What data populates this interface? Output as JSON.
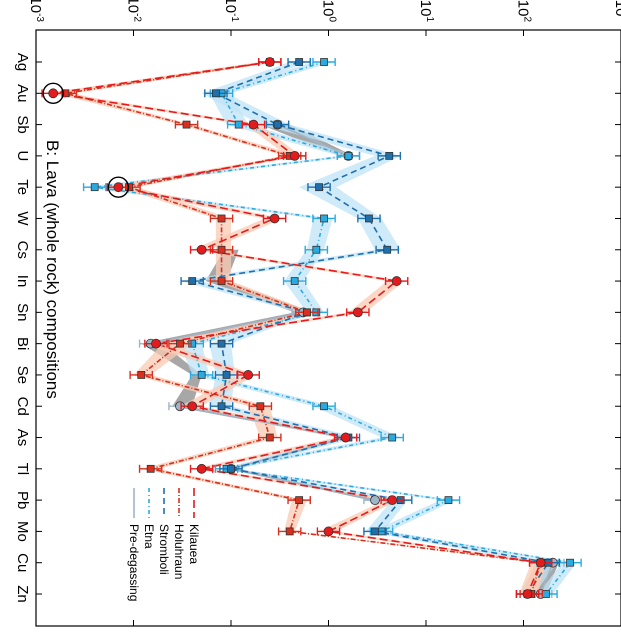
{
  "chart_data": {
    "type": "line",
    "title": "B: Lava (whole rock) compositions",
    "xlabel": "",
    "ylabel": "",
    "y_scale": "log",
    "ylim": [
      0.001,
      1000
    ],
    "y_ticks": [
      {
        "value": 0.001,
        "label": "10-3",
        "base": "10",
        "exp": "-3"
      },
      {
        "value": 0.01,
        "label": "10-2",
        "base": "10",
        "exp": "-2"
      },
      {
        "value": 0.1,
        "label": "10-1",
        "base": "10",
        "exp": "-1"
      },
      {
        "value": 1,
        "label": "100",
        "base": "10",
        "exp": "0"
      },
      {
        "value": 10,
        "label": "101",
        "base": "10",
        "exp": "1"
      },
      {
        "value": 100,
        "label": "102",
        "base": "10",
        "exp": "2"
      },
      {
        "value": 1000,
        "label": "103",
        "base": "10",
        "exp": "3"
      }
    ],
    "categories": [
      "Ag",
      "Au",
      "Sb",
      "U",
      "Te",
      "W",
      "Cs",
      "In",
      "Sn",
      "Bi",
      "Se",
      "Cd",
      "As",
      "Tl",
      "Pb",
      "Mo",
      "Cu",
      "Zn"
    ],
    "series": [
      {
        "name": "Pre-degassing",
        "color": "#9fb5c8",
        "dash": "",
        "marker": "circle",
        "values": [
          null,
          null,
          0.3,
          1.6,
          null,
          null,
          null,
          null,
          0.55,
          0.015,
          null,
          0.03,
          1.5,
          0.1,
          3.0,
          null,
          200,
          150
        ],
        "band": {
          "color": "#8a8a8a",
          "low": [
            null,
            null,
            0.2,
            1.3,
            null,
            null,
            0.085,
            0.055,
            0.45,
            0.012,
            0.04,
            0.025,
            1.3,
            0.09,
            2.6,
            null,
            170,
            130
          ],
          "high": [
            null,
            null,
            0.4,
            1.8,
            null,
            null,
            0.12,
            0.09,
            0.7,
            0.02,
            0.05,
            0.04,
            1.7,
            0.12,
            3.4,
            null,
            230,
            170
          ]
        }
      },
      {
        "name": "Etna",
        "color": "#29abe2",
        "dash": "4 3 1 3",
        "marker": "square",
        "values": [
          0.9,
          0.08,
          0.12,
          1.6,
          0.004,
          0.9,
          0.75,
          0.45,
          0.75,
          0.04,
          0.05,
          0.9,
          4.5,
          0.09,
          17,
          3.5,
          300,
          170
        ],
        "band": {
          "color": "#bfe3f5",
          "low": [
            0.7,
            0.06,
            0.09,
            1.3,
            0.003,
            0.7,
            0.6,
            0.35,
            0.6,
            0.03,
            0.04,
            0.7,
            3.5,
            0.07,
            14,
            2.8,
            250,
            140
          ],
          "high": [
            1.1,
            0.1,
            0.15,
            2.0,
            0.005,
            1.1,
            0.9,
            0.55,
            0.9,
            0.05,
            0.06,
            1.1,
            5.5,
            0.11,
            20,
            4.2,
            350,
            200
          ]
        }
      },
      {
        "name": "Stromboli",
        "color": "#1f6fad",
        "dash": "6 4",
        "marker": "square",
        "values": [
          0.5,
          0.07,
          0.3,
          4.2,
          0.8,
          2.6,
          4.0,
          0.04,
          0.6,
          0.08,
          0.09,
          0.08,
          1.6,
          0.1,
          5.5,
          3.0,
          180,
          110
        ],
        "band": {
          "color": "#bfe3f5",
          "low": [
            0.4,
            0.05,
            0.2,
            3.0,
            0.5,
            2.0,
            3.0,
            0.03,
            0.5,
            0.06,
            0.07,
            0.06,
            1.2,
            0.08,
            4.5,
            2.4,
            140,
            90
          ],
          "high": [
            0.6,
            0.09,
            0.4,
            5.5,
            1.2,
            3.5,
            5.5,
            0.05,
            0.7,
            0.1,
            0.11,
            0.1,
            2.0,
            0.12,
            6.5,
            3.6,
            220,
            130
          ]
        }
      },
      {
        "name": "Holuhraun",
        "color": "#d7301f",
        "dash": "5 2 1 2",
        "marker": "square",
        "values": [
          0.25,
          0.002,
          0.035,
          0.4,
          0.009,
          0.08,
          0.08,
          0.08,
          0.6,
          0.03,
          0.012,
          0.2,
          0.25,
          0.015,
          0.5,
          0.4,
          150,
          120
        ],
        "band": {
          "color": "#f9c9b3",
          "low": [
            0.2,
            0.0015,
            0.03,
            0.35,
            0.007,
            0.07,
            0.07,
            0.07,
            0.5,
            0.02,
            0.01,
            0.15,
            0.2,
            0.012,
            0.42,
            0.35,
            130,
            100
          ],
          "high": [
            0.3,
            0.0025,
            0.04,
            0.5,
            0.011,
            0.1,
            0.1,
            0.1,
            0.7,
            0.04,
            0.015,
            0.25,
            0.3,
            0.018,
            0.6,
            0.45,
            170,
            140
          ]
        }
      },
      {
        "name": "Kilauea",
        "color": "#e41a1c",
        "dash": "8 4",
        "marker": "circle",
        "values": [
          0.25,
          0.0015,
          0.17,
          0.45,
          0.007,
          0.28,
          0.05,
          5.0,
          2.0,
          0.017,
          0.15,
          0.04,
          1.5,
          0.05,
          4.5,
          1.0,
          150,
          110
        ],
        "band": {
          "color": "#f9c9b3",
          "low": [
            0.2,
            0.0012,
            0.14,
            0.38,
            0.005,
            0.22,
            0.04,
            4.0,
            1.6,
            0.012,
            0.12,
            0.03,
            1.2,
            0.04,
            3.8,
            0.8,
            120,
            90
          ],
          "high": [
            0.3,
            0.002,
            0.2,
            0.52,
            0.009,
            0.34,
            0.06,
            6.0,
            2.4,
            0.022,
            0.18,
            0.05,
            1.8,
            0.06,
            5.2,
            1.2,
            180,
            130
          ]
        }
      }
    ],
    "highlighted_points": [
      {
        "category": "Au",
        "value": 0.0015
      },
      {
        "category": "Te",
        "value": 0.007
      }
    ],
    "legend": {
      "placement": "bottom-right",
      "entries": [
        "Pre-degassing",
        "Etna",
        "Stromboli",
        "Holuhraun",
        "Kilauea"
      ]
    },
    "grid": false
  }
}
